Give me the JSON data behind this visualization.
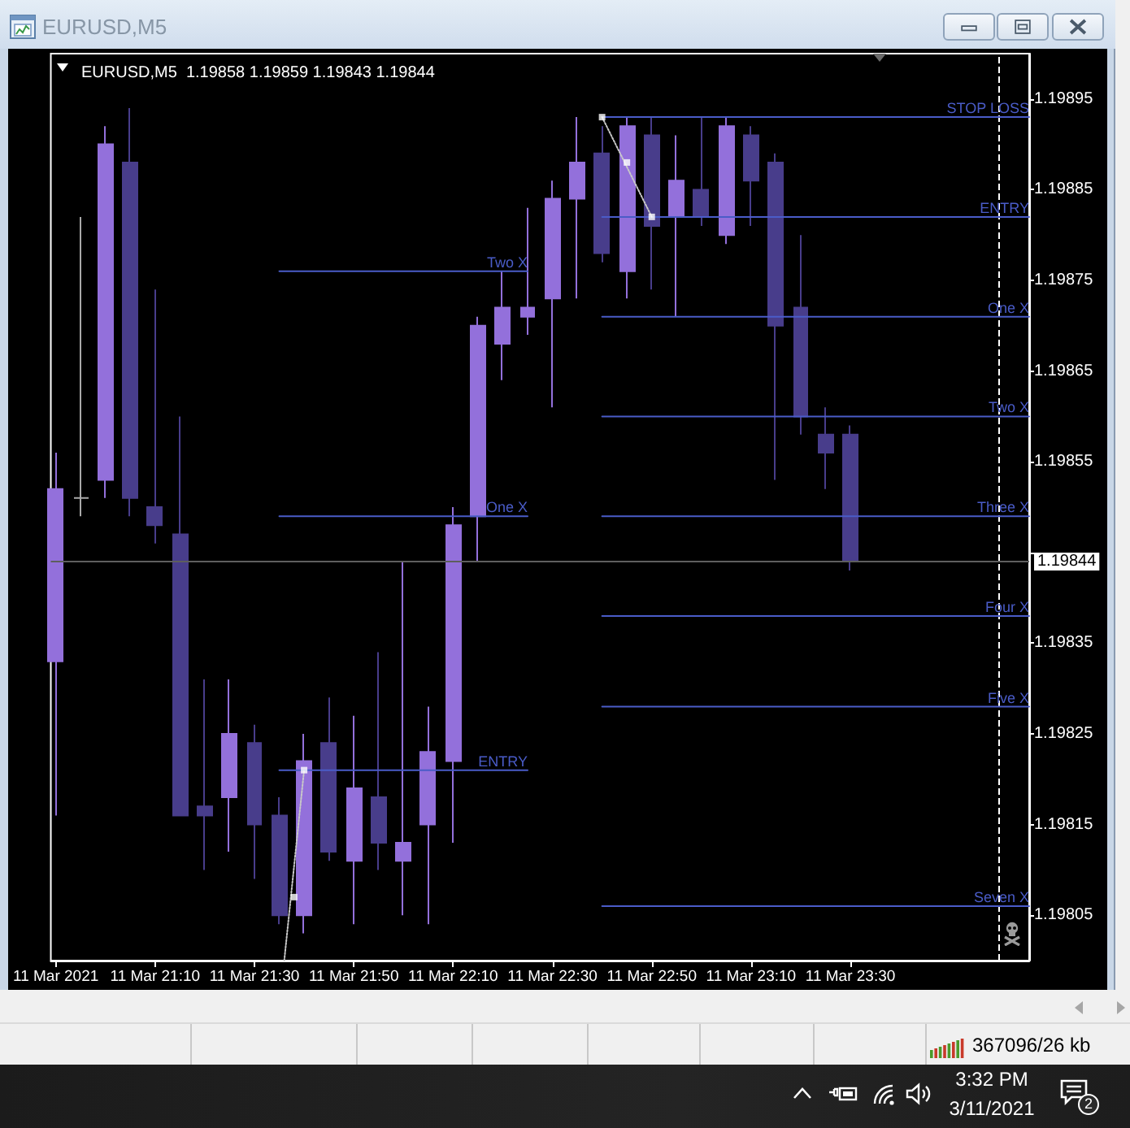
{
  "chart_data": {
    "type": "candlestick",
    "title": "EURUSD,M5",
    "subtitle": "EURUSD,M5  1.19858 1.19859 1.19843 1.19844",
    "x": [
      "2021-03-11T20:50",
      "2021-03-11T20:55",
      "2021-03-11T21:00",
      "2021-03-11T21:05",
      "2021-03-11T21:10",
      "2021-03-11T21:15",
      "2021-03-11T21:20",
      "2021-03-11T21:25",
      "2021-03-11T21:30",
      "2021-03-11T21:35",
      "2021-03-11T21:40",
      "2021-03-11T21:45",
      "2021-03-11T21:50",
      "2021-03-11T21:55",
      "2021-03-11T22:00",
      "2021-03-11T22:05",
      "2021-03-11T22:10",
      "2021-03-11T22:15",
      "2021-03-11T22:20",
      "2021-03-11T22:25",
      "2021-03-11T22:30",
      "2021-03-11T22:35",
      "2021-03-11T22:40",
      "2021-03-11T22:45",
      "2021-03-11T22:50",
      "2021-03-11T22:55",
      "2021-03-11T23:00",
      "2021-03-11T23:05",
      "2021-03-11T23:10",
      "2021-03-11T23:15",
      "2021-03-11T23:20",
      "2021-03-11T23:25",
      "2021-03-11T23:30"
    ],
    "ohlc": [
      [
        1.19833,
        1.19856,
        1.19816,
        1.19852
      ],
      [
        1.19851,
        1.19882,
        1.19849,
        1.19851
      ],
      [
        1.19853,
        1.19892,
        1.19851,
        1.1989
      ],
      [
        1.19888,
        1.19894,
        1.19849,
        1.19851
      ],
      [
        1.1985,
        1.19874,
        1.19846,
        1.19848
      ],
      [
        1.19847,
        1.1986,
        1.19816,
        1.19816
      ],
      [
        1.19817,
        1.19831,
        1.1981,
        1.19816
      ],
      [
        1.19818,
        1.19831,
        1.19812,
        1.19825
      ],
      [
        1.19824,
        1.19826,
        1.19809,
        1.19815
      ],
      [
        1.19816,
        1.19818,
        1.19804,
        1.19805
      ],
      [
        1.19805,
        1.19825,
        1.19803,
        1.19822
      ],
      [
        1.19824,
        1.19829,
        1.19811,
        1.19812
      ],
      [
        1.19811,
        1.19827,
        1.19804,
        1.19819
      ],
      [
        1.19818,
        1.19834,
        1.1981,
        1.19813
      ],
      [
        1.19811,
        1.19844,
        1.19805,
        1.19813
      ],
      [
        1.19815,
        1.19828,
        1.19804,
        1.19823
      ],
      [
        1.19822,
        1.1985,
        1.19813,
        1.19848
      ],
      [
        1.19849,
        1.19871,
        1.19844,
        1.1987
      ],
      [
        1.19868,
        1.19876,
        1.19864,
        1.19872
      ],
      [
        1.19871,
        1.19883,
        1.19869,
        1.19872
      ],
      [
        1.19873,
        1.19886,
        1.19861,
        1.19884
      ],
      [
        1.19884,
        1.19893,
        1.19873,
        1.19888
      ],
      [
        1.19889,
        1.19892,
        1.19877,
        1.19878
      ],
      [
        1.19876,
        1.19893,
        1.19873,
        1.19892
      ],
      [
        1.19891,
        1.19893,
        1.19874,
        1.19881
      ],
      [
        1.19882,
        1.19891,
        1.19871,
        1.19886
      ],
      [
        1.19885,
        1.19893,
        1.19881,
        1.19882
      ],
      [
        1.1988,
        1.19893,
        1.19879,
        1.19892
      ],
      [
        1.19891,
        1.19892,
        1.19881,
        1.19886
      ],
      [
        1.19888,
        1.19889,
        1.19853,
        1.1987
      ],
      [
        1.19872,
        1.1988,
        1.19858,
        1.1986
      ],
      [
        1.19858,
        1.19861,
        1.19852,
        1.19856
      ],
      [
        1.19858,
        1.19859,
        1.19843,
        1.19844
      ]
    ],
    "colors": [
      "#9370db",
      "#a9a9a9",
      "#9370db",
      "#483d8b",
      "#483d8b",
      "#483d8b",
      "#483d8b",
      "#9370db",
      "#483d8b",
      "#483d8b",
      "#9370db",
      "#483d8b",
      "#9370db",
      "#483d8b",
      "#9370db",
      "#9370db",
      "#9370db",
      "#9370db",
      "#9370db",
      "#9370db",
      "#9370db",
      "#9370db",
      "#483d8b",
      "#9370db",
      "#483d8b",
      "#9370db",
      "#483d8b",
      "#9370db",
      "#483d8b",
      "#483d8b",
      "#483d8b",
      "#483d8b",
      "#483d8b"
    ],
    "series": [
      {
        "type": "line",
        "name": "STOP LOSS",
        "x": [
          "2021-03-11T22:40",
          "2021-03-12T00:06"
        ],
        "values": [
          1.19893,
          1.19893
        ],
        "color": "#4a5cc8",
        "line_style": "solid",
        "marker": "none"
      },
      {
        "type": "line",
        "name": "ENTRY",
        "x": [
          "2021-03-11T22:40",
          "2021-03-12T00:06"
        ],
        "values": [
          1.19882,
          1.19882
        ],
        "color": "#4a5cc8",
        "line_style": "solid",
        "marker": "none"
      },
      {
        "type": "line",
        "name": "One X",
        "x": [
          "2021-03-11T22:40",
          "2021-03-12T00:06"
        ],
        "values": [
          1.19871,
          1.19871
        ],
        "color": "#4a5cc8",
        "line_style": "solid",
        "marker": "none"
      },
      {
        "type": "line",
        "name": "Two X",
        "x": [
          "2021-03-11T22:40",
          "2021-03-12T00:06"
        ],
        "values": [
          1.1986,
          1.1986
        ],
        "color": "#4a5cc8",
        "line_style": "solid",
        "marker": "none"
      },
      {
        "type": "line",
        "name": "Three X",
        "x": [
          "2021-03-11T22:40",
          "2021-03-12T00:06"
        ],
        "values": [
          1.19849,
          1.19849
        ],
        "color": "#4a5cc8",
        "line_style": "solid",
        "marker": "none"
      },
      {
        "type": "line",
        "name": "Four X",
        "x": [
          "2021-03-11T22:40",
          "2021-03-12T00:06"
        ],
        "values": [
          1.19838,
          1.19838
        ],
        "color": "#4a5cc8",
        "line_style": "solid",
        "marker": "none"
      },
      {
        "type": "line",
        "name": "Five X",
        "x": [
          "2021-03-11T22:40",
          "2021-03-12T00:06"
        ],
        "values": [
          1.19828,
          1.19828
        ],
        "color": "#4a5cc8",
        "line_style": "solid",
        "marker": "none"
      },
      {
        "type": "line",
        "name": "Seven X",
        "x": [
          "2021-03-11T22:40",
          "2021-03-12T00:06"
        ],
        "values": [
          1.19806,
          1.19806
        ],
        "color": "#4a5cc8",
        "line_style": "solid",
        "marker": "none"
      },
      {
        "type": "line",
        "name": "Two X",
        "x": [
          "2021-03-11T21:35",
          "2021-03-11T22:25"
        ],
        "values": [
          1.19876,
          1.19876
        ],
        "color": "#4a5cc8",
        "line_style": "solid",
        "marker": "none"
      },
      {
        "type": "line",
        "name": "One X",
        "x": [
          "2021-03-11T21:35",
          "2021-03-11T22:25"
        ],
        "values": [
          1.19849,
          1.19849
        ],
        "color": "#4a5cc8",
        "line_style": "solid",
        "marker": "none"
      },
      {
        "type": "line",
        "name": "ENTRY",
        "x": [
          "2021-03-11T21:35",
          "2021-03-11T22:25"
        ],
        "values": [
          1.19821,
          1.19821
        ],
        "color": "#4a5cc8",
        "line_style": "solid",
        "marker": "none"
      },
      {
        "type": "line",
        "x": [
          "2021-03-11T21:36",
          "2021-03-11T21:40"
        ],
        "values": [
          1.198,
          1.19821
        ],
        "color": "#c8c8c8",
        "line_style": "dotted",
        "marker": "none"
      },
      {
        "type": "line",
        "x": [
          "2021-03-11T22:40",
          "2021-03-11T22:50"
        ],
        "values": [
          1.19893,
          1.19882
        ],
        "color": "#c8c8c8",
        "line_style": "dotted",
        "marker": "none"
      },
      {
        "type": "scatter",
        "x": [
          "2021-03-11T21:38",
          "2021-03-11T21:40",
          "2021-03-11T22:40",
          "2021-03-11T22:45",
          "2021-03-11T22:50"
        ],
        "values": [
          1.19807,
          1.19821,
          1.19893,
          1.19888,
          1.19882
        ],
        "color": "#ffffff",
        "marker": "square"
      }
    ],
    "xlim": [
      "2021-03-11T20:49",
      "2021-03-12T00:06"
    ],
    "xticks": [
      {
        "value": "2021-03-11T20:50",
        "label": "11 Mar 2021"
      },
      {
        "value": "2021-03-11T21:10",
        "label": "11 Mar 21:10"
      },
      {
        "value": "2021-03-11T21:30",
        "label": "11 Mar 21:30"
      },
      {
        "value": "2021-03-11T21:50",
        "label": "11 Mar 21:50"
      },
      {
        "value": "2021-03-11T22:10",
        "label": "11 Mar 22:10"
      },
      {
        "value": "2021-03-11T22:30",
        "label": "11 Mar 22:30"
      },
      {
        "value": "2021-03-11T22:50",
        "label": "11 Mar 22:50"
      },
      {
        "value": "2021-03-11T23:10",
        "label": "11 Mar 23:10"
      },
      {
        "value": "2021-03-11T23:30",
        "label": "11 Mar 23:30"
      }
    ],
    "ylim": [
      1.198,
      1.199
    ],
    "yticks": [
      1.19805,
      1.19815,
      1.19825,
      1.19835,
      {
        "value": 1.19845,
        "label": null
      },
      1.19855,
      1.19865,
      1.19875,
      1.19885,
      1.19895
    ],
    "ref_lines": [
      {
        "axis": "y",
        "value": 1.19844,
        "label": "1.19844",
        "color": "#5e5e5e",
        "line_style": "solid"
      },
      {
        "axis": "x",
        "value": "2021-03-12T00:00",
        "color": "#ffffff",
        "line_style": "dashed"
      }
    ],
    "annotations": [
      "367096/26 kb",
      "3:32 PM",
      "3/11/2021",
      "2"
    ],
    "grid": false,
    "legend": false
  }
}
